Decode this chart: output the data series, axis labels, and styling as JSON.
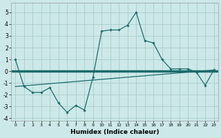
{
  "title": "",
  "xlabel": "Humidex (Indice chaleur)",
  "background_color": "#cce8e8",
  "grid_color": "#aacccc",
  "line_color": "#1a6b6b",
  "xlim": [
    -0.5,
    23.5
  ],
  "ylim": [
    -4.2,
    5.8
  ],
  "xticks": [
    0,
    1,
    2,
    3,
    4,
    5,
    6,
    7,
    8,
    9,
    10,
    11,
    12,
    13,
    14,
    15,
    16,
    17,
    18,
    19,
    20,
    21,
    22,
    23
  ],
  "yticks": [
    -4,
    -3,
    -2,
    -1,
    0,
    1,
    2,
    3,
    4,
    5
  ],
  "series1_x": [
    0,
    1,
    2,
    3,
    4,
    5,
    6,
    7,
    8,
    9,
    10,
    11,
    12,
    13,
    14,
    15,
    16,
    17,
    18,
    19,
    20,
    21,
    22,
    23
  ],
  "series1_y": [
    1.0,
    -1.3,
    -1.8,
    -1.8,
    -1.4,
    -2.7,
    -3.5,
    -2.9,
    -3.3,
    -0.5,
    3.4,
    3.5,
    3.5,
    3.9,
    5.0,
    2.6,
    2.4,
    1.0,
    0.2,
    0.2,
    0.2,
    -0.1,
    -1.2,
    0.1
  ],
  "trend_x": [
    0,
    23
  ],
  "trend_y": [
    -1.3,
    0.1
  ],
  "zero_line_y": 0.0
}
